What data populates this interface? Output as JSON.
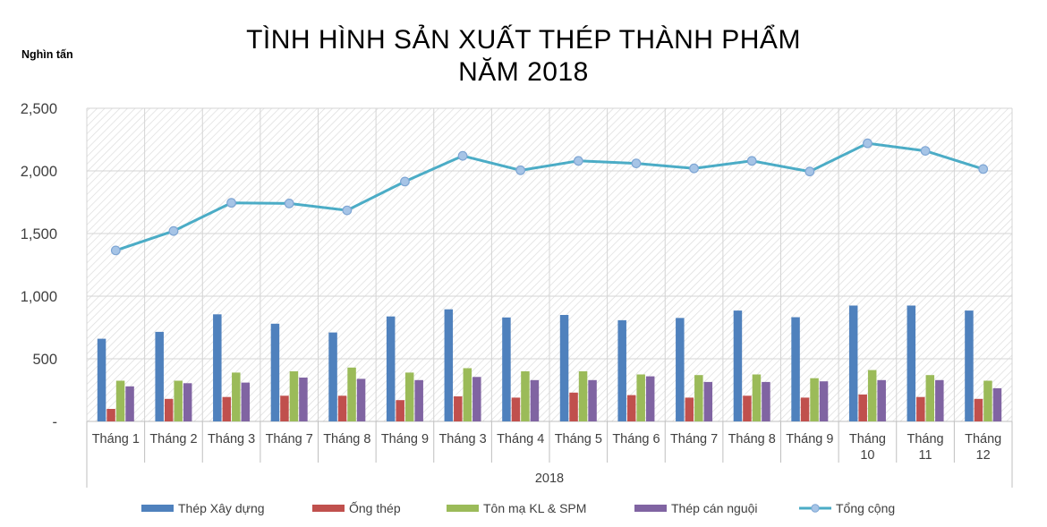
{
  "chart_data": {
    "type": "bar",
    "title": "TÌNH HÌNH SẢN XUẤT THÉP THÀNH PHẨM",
    "subtitle": "NĂM 2018",
    "ylabel": "Nghìn tấn",
    "xlabel": "2018",
    "ylim": [
      0,
      2500
    ],
    "yticks": [
      "-",
      "500",
      "1,000",
      "1,500",
      "2,000",
      "2,500"
    ],
    "ytick_values": [
      0,
      500,
      1000,
      1500,
      2000,
      2500
    ],
    "grid": true,
    "legend_position": "bottom",
    "categories": [
      [
        "Tháng 1"
      ],
      [
        "Tháng 2"
      ],
      [
        "Tháng 3"
      ],
      [
        "Tháng 7"
      ],
      [
        "Tháng 8"
      ],
      [
        "Tháng 9"
      ],
      [
        "Tháng 3"
      ],
      [
        "Tháng 4"
      ],
      [
        "Tháng 5"
      ],
      [
        "Tháng 6"
      ],
      [
        "Tháng 7"
      ],
      [
        "Tháng 8"
      ],
      [
        "Tháng 9"
      ],
      [
        "Tháng",
        "10"
      ],
      [
        "Tháng",
        "11"
      ],
      [
        "Tháng",
        "12"
      ]
    ],
    "series": [
      {
        "name": "Thép Xây dựng",
        "kind": "bar",
        "color": "#4f81bd",
        "values": [
          660,
          715,
          855,
          780,
          710,
          838,
          895,
          830,
          850,
          808,
          826,
          885,
          832,
          925,
          925,
          885
        ]
      },
      {
        "name": "Ống thép",
        "kind": "bar",
        "color": "#c0504d",
        "values": [
          100,
          180,
          195,
          205,
          205,
          170,
          200,
          190,
          230,
          210,
          190,
          205,
          190,
          215,
          195,
          180
        ]
      },
      {
        "name": "Tôn mạ KL & SPM",
        "kind": "bar",
        "color": "#9bbb59",
        "values": [
          325,
          325,
          390,
          400,
          430,
          390,
          425,
          400,
          400,
          375,
          370,
          375,
          345,
          410,
          370,
          325
        ]
      },
      {
        "name": "Thép cán nguội",
        "kind": "bar",
        "color": "#8064a2",
        "values": [
          280,
          305,
          310,
          350,
          340,
          330,
          355,
          330,
          330,
          360,
          315,
          315,
          320,
          330,
          330,
          265
        ]
      },
      {
        "name": "Tổng cộng",
        "kind": "line",
        "color": "#4bacc6",
        "values": [
          1365,
          1520,
          1745,
          1740,
          1685,
          1915,
          2120,
          2005,
          2080,
          2060,
          2020,
          2080,
          1995,
          2220,
          2160,
          2015
        ]
      }
    ]
  }
}
